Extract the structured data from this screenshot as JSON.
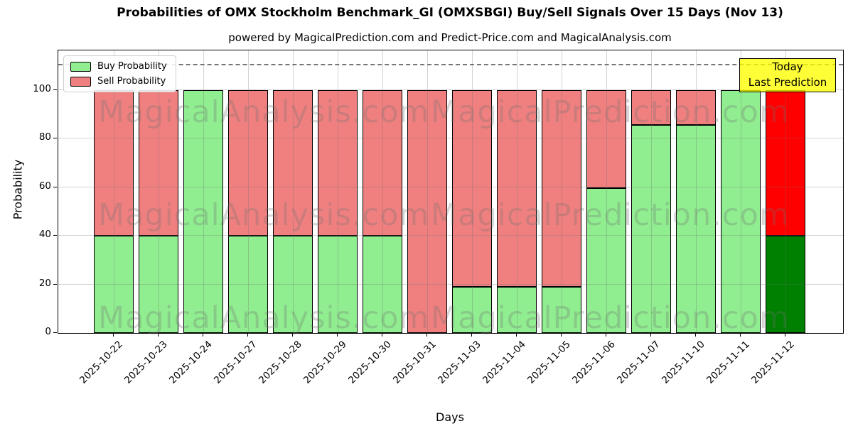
{
  "watermarks": {
    "left": "MagicalAnalysis.com",
    "right": "MagicalPrediction.com"
  },
  "annotation": {
    "lines": [
      "Today",
      "Last Prediction"
    ],
    "bg_color": "#ffff00"
  },
  "chart_data": {
    "type": "bar",
    "stacked": true,
    "title": "Probabilities of OMX Stockholm Benchmark_GI (OMXSBGI) Buy/Sell Signals Over 15 Days (Nov 13)",
    "subtitle": "powered by MagicalPrediction.com and Predict-Price.com and MagicalAnalysis.com",
    "xlabel": "Days",
    "ylabel": "Probability",
    "categories": [
      "2025-10-22",
      "2025-10-23",
      "2025-10-24",
      "2025-10-27",
      "2025-10-28",
      "2025-10-29",
      "2025-10-30",
      "2025-10-31",
      "2025-11-03",
      "2025-11-04",
      "2025-11-05",
      "2025-11-06",
      "2025-11-07",
      "2025-11-10",
      "2025-11-11",
      "2025-11-12"
    ],
    "series": [
      {
        "name": "Buy Probability",
        "color": "#90ee90",
        "values": [
          40,
          40,
          100,
          40,
          40,
          40,
          40,
          0,
          19,
          19,
          19,
          59.5,
          85.5,
          85.5,
          100,
          40
        ]
      },
      {
        "name": "Sell Probability",
        "color": "#f08080",
        "values": [
          60,
          60,
          0,
          60,
          60,
          60,
          60,
          100,
          81,
          81,
          81,
          40.5,
          14.5,
          14.5,
          0,
          60
        ]
      }
    ],
    "today_bar": {
      "category": "2025-11-12",
      "buy_color": "#008000",
      "sell_color": "#ff0000"
    },
    "yticks": [
      0,
      20,
      40,
      60,
      80,
      100
    ],
    "ylim": [
      0,
      116
    ],
    "threshold_dashed_line_y": 110,
    "grid": true,
    "legend_position": "upper left"
  }
}
